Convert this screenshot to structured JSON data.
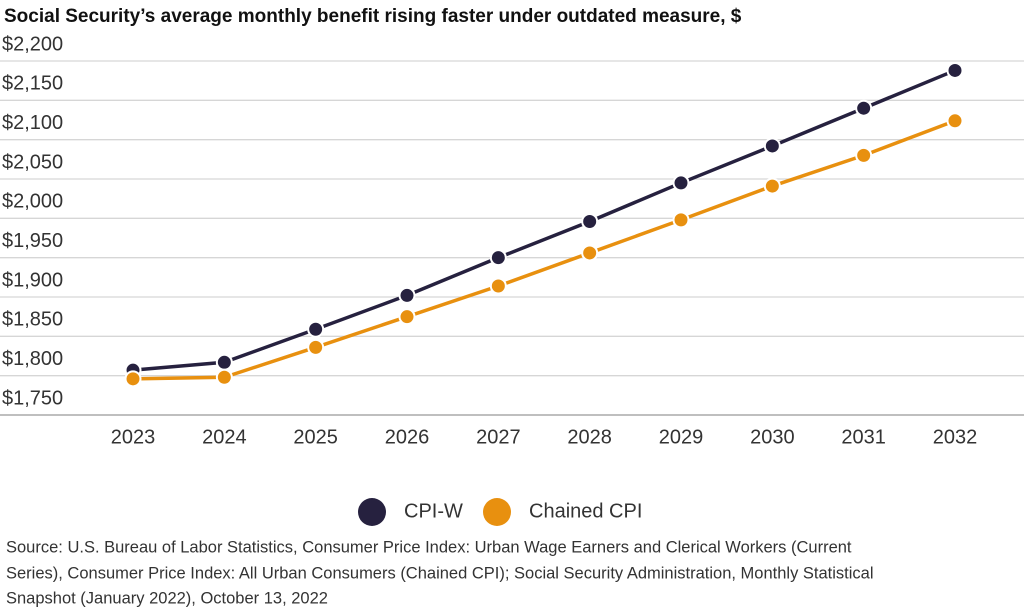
{
  "chart_data": {
    "type": "line",
    "title": "Social Security’s average monthly benefit rising faster under outdated measure, $",
    "categories": [
      "2023",
      "2024",
      "2025",
      "2026",
      "2027",
      "2028",
      "2029",
      "2030",
      "2031",
      "2032"
    ],
    "series": [
      {
        "name": "CPI-W",
        "color": "#26213f",
        "values": [
          1807,
          1817,
          1859,
          1902,
          1950,
          1996,
          2045,
          2092,
          2140,
          2188
        ]
      },
      {
        "name": "Chained CPI",
        "color": "#e8900f",
        "values": [
          1796,
          1798,
          1836,
          1875,
          1914,
          1956,
          1998,
          2041,
          2080,
          2124
        ]
      }
    ],
    "ylim": [
      1750,
      2200
    ],
    "yticks": [
      {
        "value": 1750,
        "label": "$1,750"
      },
      {
        "value": 1800,
        "label": "$1,800"
      },
      {
        "value": 1850,
        "label": "$1,850"
      },
      {
        "value": 1900,
        "label": "$1,900"
      },
      {
        "value": 1950,
        "label": "$1,950"
      },
      {
        "value": 2000,
        "label": "$2,000"
      },
      {
        "value": 2050,
        "label": "$2,050"
      },
      {
        "value": 2100,
        "label": "$2,100"
      },
      {
        "value": 2150,
        "label": "$2,150"
      },
      {
        "value": 2200,
        "label": "$2,200"
      }
    ],
    "grid": true,
    "source": [
      "Source: U.S. Bureau of Labor Statistics, Consumer Price Index: Urban Wage Earners and Clerical Workers (Current",
      "Series), Consumer Price Index: All Urban Consumers (Chained CPI); Social Security Administration, Monthly Statistical",
      "Snapshot (January 2022), October 13, 2022"
    ]
  }
}
